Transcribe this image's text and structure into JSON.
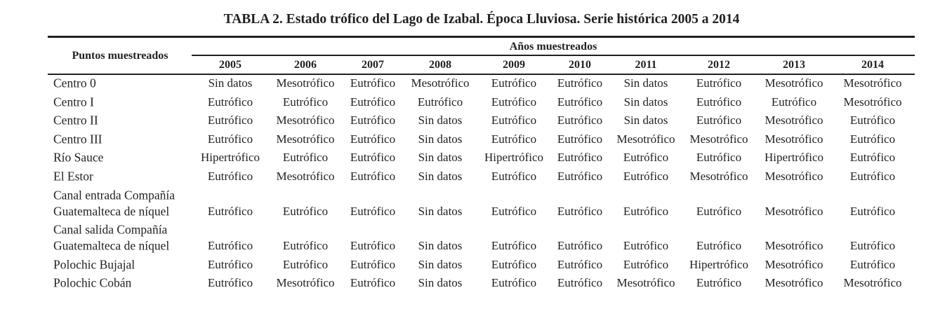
{
  "title": "TABLA 2. Estado trófico del Lago de Izabal. Época Lluviosa. Serie histórica 2005 a 2014",
  "table": {
    "row_header": "Puntos muestreados",
    "column_group": "Años muestreados",
    "years": [
      "2005",
      "2006",
      "2007",
      "2008",
      "2009",
      "2010",
      "2011",
      "2012",
      "2013",
      "2014"
    ],
    "rows": [
      {
        "label": [
          "Centro 0"
        ],
        "values": [
          "Sin datos",
          "Mesotrófico",
          "Eutrófico",
          "Mesotrófico",
          "Eutrófico",
          "Eutrófico",
          "Sin datos",
          "Eutrófico",
          "Mesotrófico",
          "Mesotrófico"
        ]
      },
      {
        "label": [
          "Centro I"
        ],
        "values": [
          "Eutrófico",
          "Eutrófico",
          "Eutrófico",
          "Eutrófico",
          "Eutrófico",
          "Eutrófico",
          "Sin datos",
          "Eutrófico",
          "Eutrófico",
          "Mesotrófico"
        ]
      },
      {
        "label": [
          "Centro II"
        ],
        "values": [
          "Eutrófico",
          "Mesotrófico",
          "Eutrófico",
          "Sin datos",
          "Eutrófico",
          "Eutrófico",
          "Sin datos",
          "Eutrófico",
          "Mesotrófico",
          "Eutrófico"
        ]
      },
      {
        "label": [
          "Centro III"
        ],
        "values": [
          "Eutrófico",
          "Mesotrófico",
          "Eutrófico",
          "Sin datos",
          "Eutrófico",
          "Eutrófico",
          "Mesotrófico",
          "Mesotrófico",
          "Mesotrófico",
          "Eutrófico"
        ]
      },
      {
        "label": [
          "Río Sauce"
        ],
        "values": [
          "Hipertrófico",
          "Eutrófico",
          "Eutrófico",
          "Sin datos",
          "Hipertrófico",
          "Eutrófico",
          "Eutrófico",
          "Eutrófico",
          "Hipertrófico",
          "Eutrófico"
        ]
      },
      {
        "label": [
          "El Estor"
        ],
        "values": [
          "Eutrófico",
          "Mesotrófico",
          "Eutrófico",
          "Sin datos",
          "Eutrófico",
          "Eutrófico",
          "Eutrófico",
          "Mesotrófico",
          "Mesotrófico",
          "Eutrófico"
        ]
      },
      {
        "label": [
          "Canal entrada Compañía",
          "Guatemalteca de níquel"
        ],
        "values": [
          "Eutrófico",
          "Eutrófico",
          "Eutrófico",
          "Sin datos",
          "Eutrófico",
          "Eutrófico",
          "Eutrófico",
          "Eutrófico",
          "Mesotrófico",
          "Eutrófico"
        ]
      },
      {
        "label": [
          "Canal salida Compañía",
          "Guatemalteca de níquel"
        ],
        "values": [
          "Eutrófico",
          "Eutrófico",
          "Eutrófico",
          "Sin datos",
          "Eutrófico",
          "Eutrófico",
          "Eutrófico",
          "Eutrófico",
          "Mesotrófico",
          "Eutrófico"
        ]
      },
      {
        "label": [
          "Polochic Bujajal"
        ],
        "values": [
          "Eutrófico",
          "Eutrófico",
          "Eutrófico",
          "Sin datos",
          "Eutrófico",
          "Eutrófico",
          "Eutrófico",
          "Hipertrófico",
          "Mesotrófico",
          "Eutrófico"
        ]
      },
      {
        "label": [
          "Polochic Cobán"
        ],
        "values": [
          "Eutrófico",
          "Mesotrófico",
          "Eutrófico",
          "Sin datos",
          "Eutrófico",
          "Eutrófico",
          "Mesotrófico",
          "Eutrófico",
          "Mesotrófico",
          "Mesotrófico"
        ]
      }
    ]
  }
}
